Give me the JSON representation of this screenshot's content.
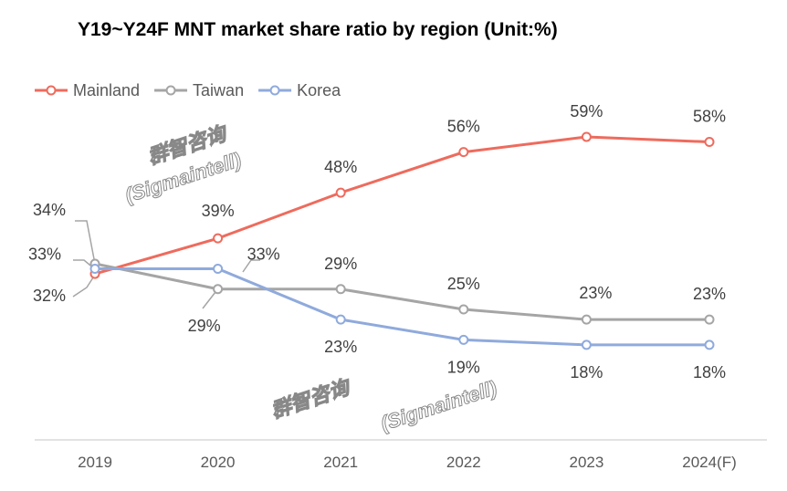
{
  "chart_data": {
    "type": "line",
    "title": "Y19~Y24F MNT market share ratio by region (Unit:%)",
    "categories": [
      "2019",
      "2020",
      "2021",
      "2022",
      "2023",
      "2024(F)"
    ],
    "series": [
      {
        "name": "Mainland",
        "color": "#ee6b5d",
        "values": [
          32,
          39,
          48,
          56,
          59,
          58
        ],
        "labels": [
          "32%",
          "39%",
          "48%",
          "56%",
          "59%",
          "58%"
        ]
      },
      {
        "name": "Taiwan",
        "color": "#a5a5a5",
        "values": [
          34,
          29,
          29,
          25,
          23,
          23
        ],
        "labels": [
          "34%",
          "29%",
          "29%",
          "25%",
          "23%",
          "23%"
        ]
      },
      {
        "name": "Korea",
        "color": "#8faadc",
        "values": [
          33,
          33,
          23,
          19,
          18,
          18
        ],
        "labels": [
          "33%",
          "33%",
          "23%",
          "19%",
          "18%",
          "18%"
        ]
      }
    ],
    "ylim": [
      0,
      68
    ],
    "grid": false,
    "legend": "top-left"
  },
  "watermark": {
    "cn": "群智咨询",
    "en": "(Sigmaintell)"
  }
}
